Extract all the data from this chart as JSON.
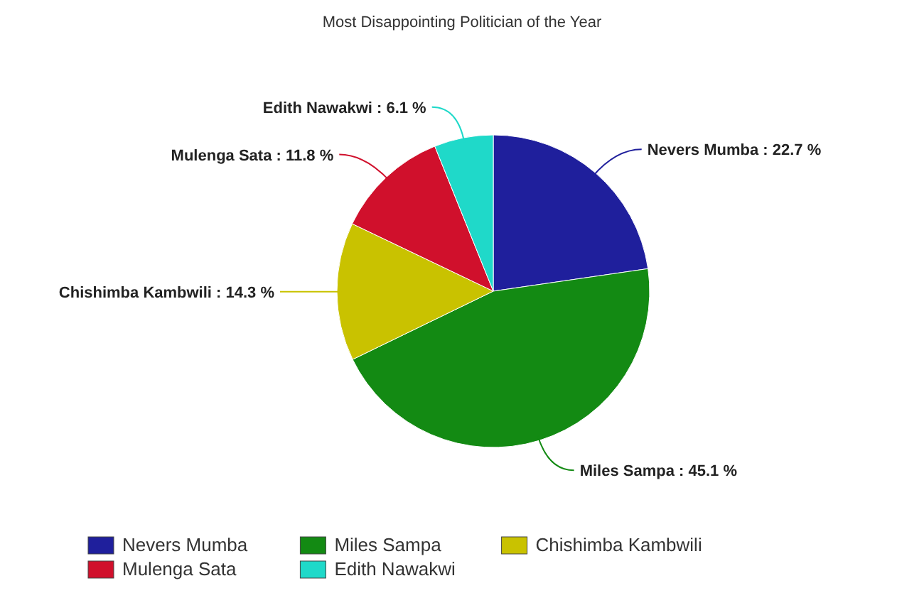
{
  "chart_data": {
    "type": "pie",
    "title": "Most Disappointing Politician of the Year",
    "categories": [
      "Nevers Mumba",
      "Miles Sampa",
      "Chishimba Kambwili",
      "Mulenga Sata",
      "Edith Nawakwi"
    ],
    "values": [
      22.7,
      45.1,
      14.3,
      11.8,
      6.1
    ],
    "colors": [
      "#1f1f9c",
      "#138a13",
      "#c9c200",
      "#d0102c",
      "#1fd9c9"
    ],
    "value_labels": [
      "Nevers Mumba : 22.7 %",
      "Miles Sampa : 45.1 %",
      "Chishimba Kambwili : 14.3 %",
      "Mulenga Sata : 11.8 %",
      "Edith Nawakwi : 6.1 %"
    ],
    "legend": "bottom"
  }
}
